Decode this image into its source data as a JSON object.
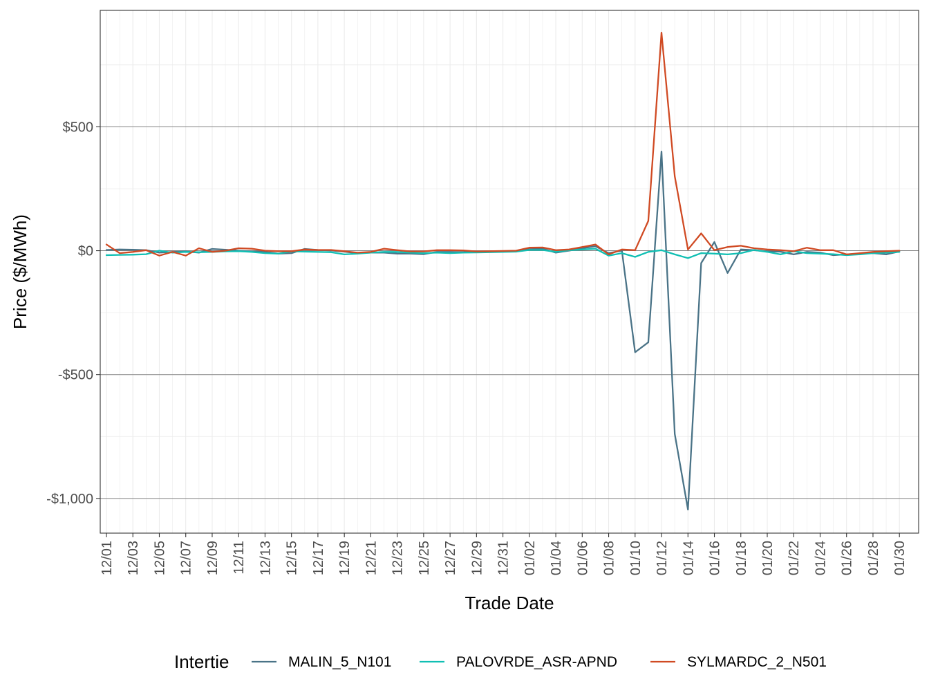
{
  "chart_data": {
    "type": "line",
    "title": "",
    "xlabel": "Trade Date",
    "ylabel": "Price ($/MWh)",
    "ylim": [
      -1140,
      970
    ],
    "yticks": [
      {
        "value": 500,
        "label": "$500"
      },
      {
        "value": 0,
        "label": "$0"
      },
      {
        "value": -500,
        "label": "-$500"
      },
      {
        "value": -1000,
        "label": "-$1,000"
      }
    ],
    "x_tick_labels": [
      "12/01",
      "12/03",
      "12/05",
      "12/07",
      "12/09",
      "12/11",
      "12/13",
      "12/15",
      "12/17",
      "12/19",
      "12/21",
      "12/23",
      "12/25",
      "12/27",
      "12/29",
      "12/31",
      "01/02",
      "01/04",
      "01/06",
      "01/08",
      "01/10",
      "01/12",
      "01/14",
      "01/16",
      "01/18",
      "01/20",
      "01/22",
      "01/24",
      "01/26",
      "01/28",
      "01/30"
    ],
    "x_start_date": "12/01",
    "x_days": 61,
    "legend_title": "Intertie",
    "legend_position": "bottom",
    "series": [
      {
        "name": "MALIN_5_N101",
        "color": "#4a7387",
        "values": [
          3,
          5,
          4,
          2,
          -8,
          -5,
          -3,
          -8,
          7,
          4,
          0,
          -3,
          -5,
          -12,
          -10,
          7,
          3,
          1,
          -4,
          -10,
          -8,
          -8,
          -12,
          -12,
          -14,
          -5,
          -5,
          -6,
          -5,
          -3,
          -2,
          -1,
          6,
          8,
          -8,
          0,
          10,
          18,
          -10,
          0,
          -410,
          -370,
          400,
          -740,
          -1045,
          -50,
          35,
          -90,
          5,
          2,
          -3,
          -4,
          -15,
          -5,
          -8,
          -18,
          -15,
          -12,
          -10,
          -15,
          -3
        ]
      },
      {
        "name": "PALOVRDE_ASR-APND",
        "color": "#10bfb3",
        "values": [
          -18,
          -17,
          -16,
          -14,
          0,
          -8,
          -5,
          -6,
          -5,
          -3,
          -2,
          -5,
          -10,
          -12,
          -3,
          -4,
          -5,
          -6,
          -15,
          -12,
          -8,
          -5,
          -5,
          -8,
          -10,
          -8,
          -10,
          -8,
          -7,
          -6,
          -5,
          -4,
          3,
          3,
          -5,
          2,
          5,
          8,
          -20,
          -10,
          -25,
          -5,
          2,
          -15,
          -30,
          -10,
          -12,
          -15,
          -10,
          3,
          -5,
          -15,
          -2,
          -10,
          -12,
          -14,
          -18,
          -15,
          -10,
          -8,
          -5
        ]
      },
      {
        "name": "SYLMARDC_2_N501",
        "color": "#d04a23",
        "values": [
          25,
          -10,
          -5,
          2,
          -20,
          -5,
          -20,
          10,
          -5,
          0,
          10,
          8,
          0,
          -2,
          -2,
          5,
          3,
          3,
          -2,
          -8,
          -5,
          8,
          2,
          -3,
          -3,
          2,
          2,
          1,
          -3,
          -2,
          -1,
          0,
          12,
          13,
          2,
          5,
          15,
          25,
          -15,
          5,
          2,
          120,
          880,
          300,
          5,
          70,
          2,
          15,
          20,
          10,
          5,
          2,
          -2,
          12,
          2,
          2,
          -15,
          -10,
          -5,
          -2,
          0
        ]
      }
    ]
  }
}
